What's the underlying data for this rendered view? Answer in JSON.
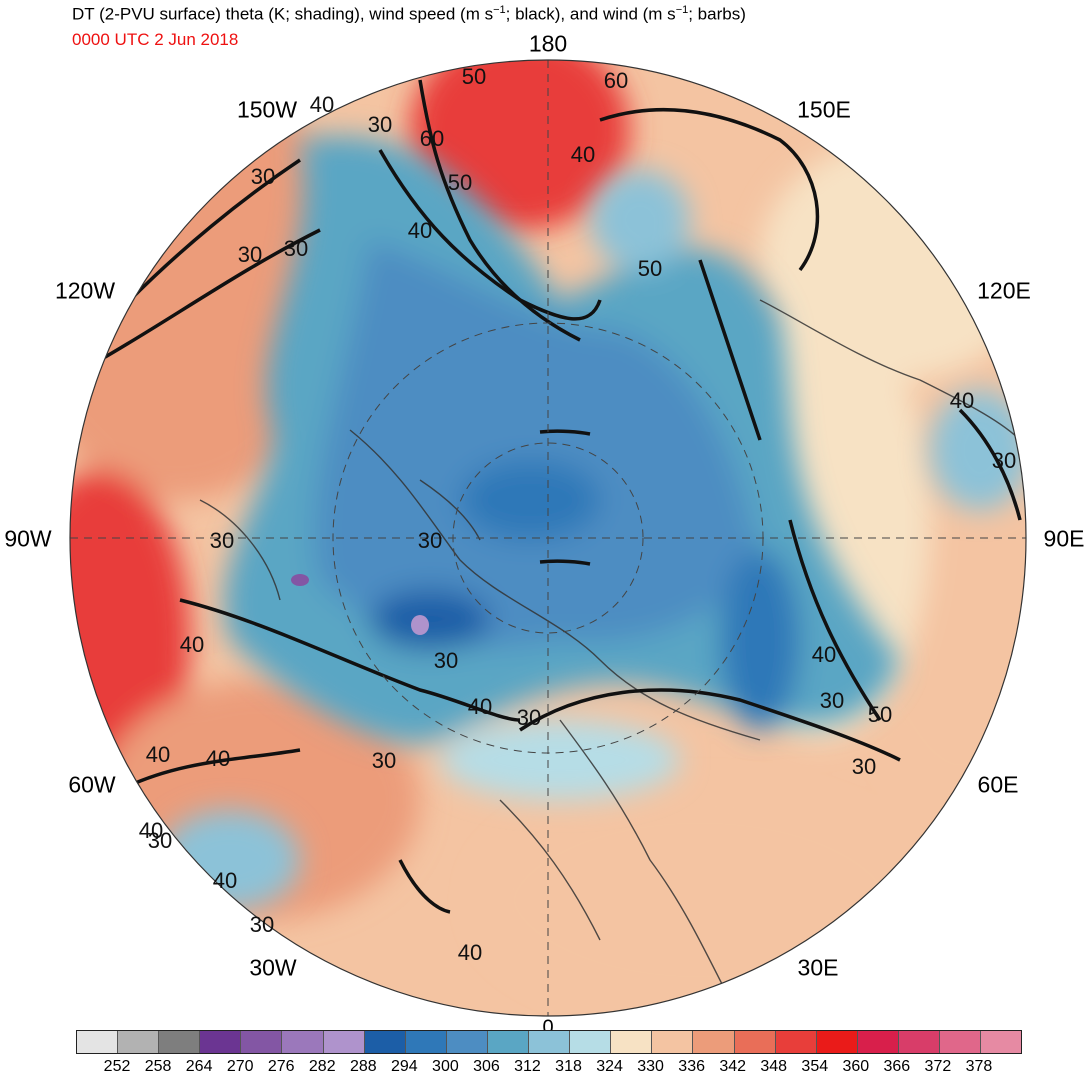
{
  "header": {
    "title": "DT (2-PVU surface) theta (K; shading), wind speed (m s",
    "title_sup1": "−1",
    "title_mid": "; black), and wind (m s",
    "title_sup2": "−1",
    "title_end": "; barbs)",
    "datetime": "0000 UTC 2 Jun 2018",
    "datetime_color": "#ee1111"
  },
  "longitude_labels": {
    "top": "180",
    "upper_left": "150W",
    "upper_right": "150E",
    "left_upper": "120W",
    "right_upper": "120E",
    "left": "90W",
    "right": "90E",
    "left_lower": "60W",
    "right_lower": "60E",
    "lower_left": "30W",
    "lower_right": "30E",
    "bottom": "0"
  },
  "contour_labels": [
    "40",
    "50",
    "60",
    "30",
    "60",
    "50",
    "40",
    "40",
    "30",
    "30",
    "50",
    "30",
    "40",
    "30",
    "30",
    "40",
    "40",
    "40",
    "30",
    "30",
    "40",
    "30",
    "40",
    "30",
    "50",
    "30",
    "40",
    "40",
    "30",
    "40",
    "30",
    "30"
  ],
  "colorbar": {
    "colors": [
      "#e4e4e4",
      "#b2b2b2",
      "#7e7e7e",
      "#6b3592",
      "#8356a4",
      "#9b78bb",
      "#af93cc",
      "#1c5ea7",
      "#2f78b8",
      "#4d8dc2",
      "#5aa6c4",
      "#8cc2d8",
      "#b6dde6",
      "#f7e2c4",
      "#f4c4a2",
      "#ec9c7a",
      "#e96e58",
      "#e83e3a",
      "#ea1b19",
      "#d81f4b",
      "#d83d69",
      "#e0678a",
      "#e68aa3"
    ],
    "ticks": [
      "252",
      "258",
      "264",
      "270",
      "276",
      "282",
      "288",
      "294",
      "300",
      "306",
      "312",
      "318",
      "324",
      "330",
      "336",
      "342",
      "348",
      "354",
      "360",
      "366",
      "372",
      "378"
    ]
  }
}
